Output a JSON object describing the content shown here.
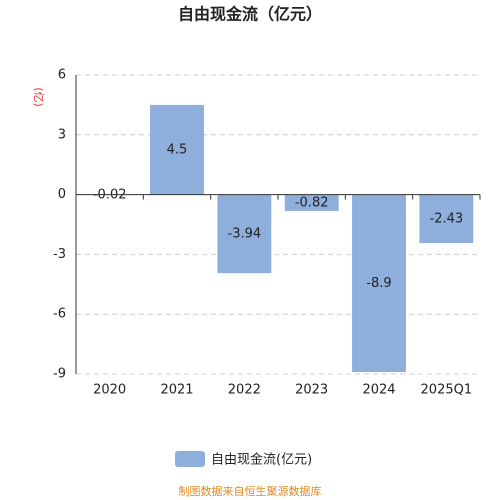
{
  "chart_data": {
    "type": "bar",
    "title": "自由现金流（亿元）",
    "y_label": "(亿)",
    "categories": [
      "2020",
      "2021",
      "2022",
      "2023",
      "2024",
      "2025Q1"
    ],
    "series": [
      {
        "name": "自由现金流(亿元)",
        "color": "#8eaedb",
        "values": [
          -0.02,
          4.5,
          -3.94,
          -0.82,
          -8.9,
          -2.43
        ]
      }
    ],
    "ylim": [
      -9,
      6
    ],
    "yticks": [
      -9,
      -6,
      -3,
      0,
      3,
      6
    ],
    "grid": true,
    "legend": "bottom",
    "footer": "制图数据来自恒生聚源数据库"
  }
}
